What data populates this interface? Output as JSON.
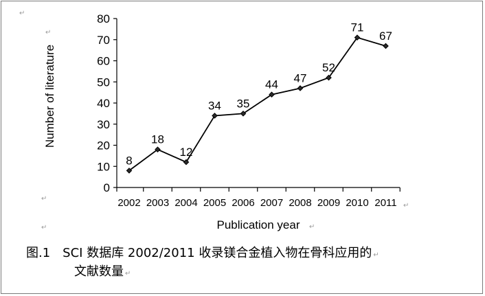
{
  "chart_data": {
    "type": "line",
    "title": "",
    "xlabel": "Publication year",
    "ylabel": "Number of literature",
    "categories": [
      "2002",
      "2003",
      "2004",
      "2005",
      "2006",
      "2007",
      "2008",
      "2009",
      "2010",
      "2011"
    ],
    "values": [
      8,
      18,
      12,
      34,
      35,
      44,
      47,
      52,
      71,
      67
    ],
    "data_labels": [
      "8",
      "18",
      "12",
      "34",
      "35",
      "44",
      "47",
      "52",
      "71",
      "67"
    ],
    "ylim": [
      0,
      80
    ],
    "yticks": [
      "0",
      "10",
      "20",
      "30",
      "40",
      "50",
      "60",
      "70",
      "80"
    ],
    "grid": false,
    "legend": "none",
    "line_color": "#000000",
    "marker": "diamond"
  },
  "caption": {
    "line1": "图.1　SCI 数据库 2002/2011 收录镁合金植入物在骨科应用的",
    "line2": "文献数量"
  }
}
